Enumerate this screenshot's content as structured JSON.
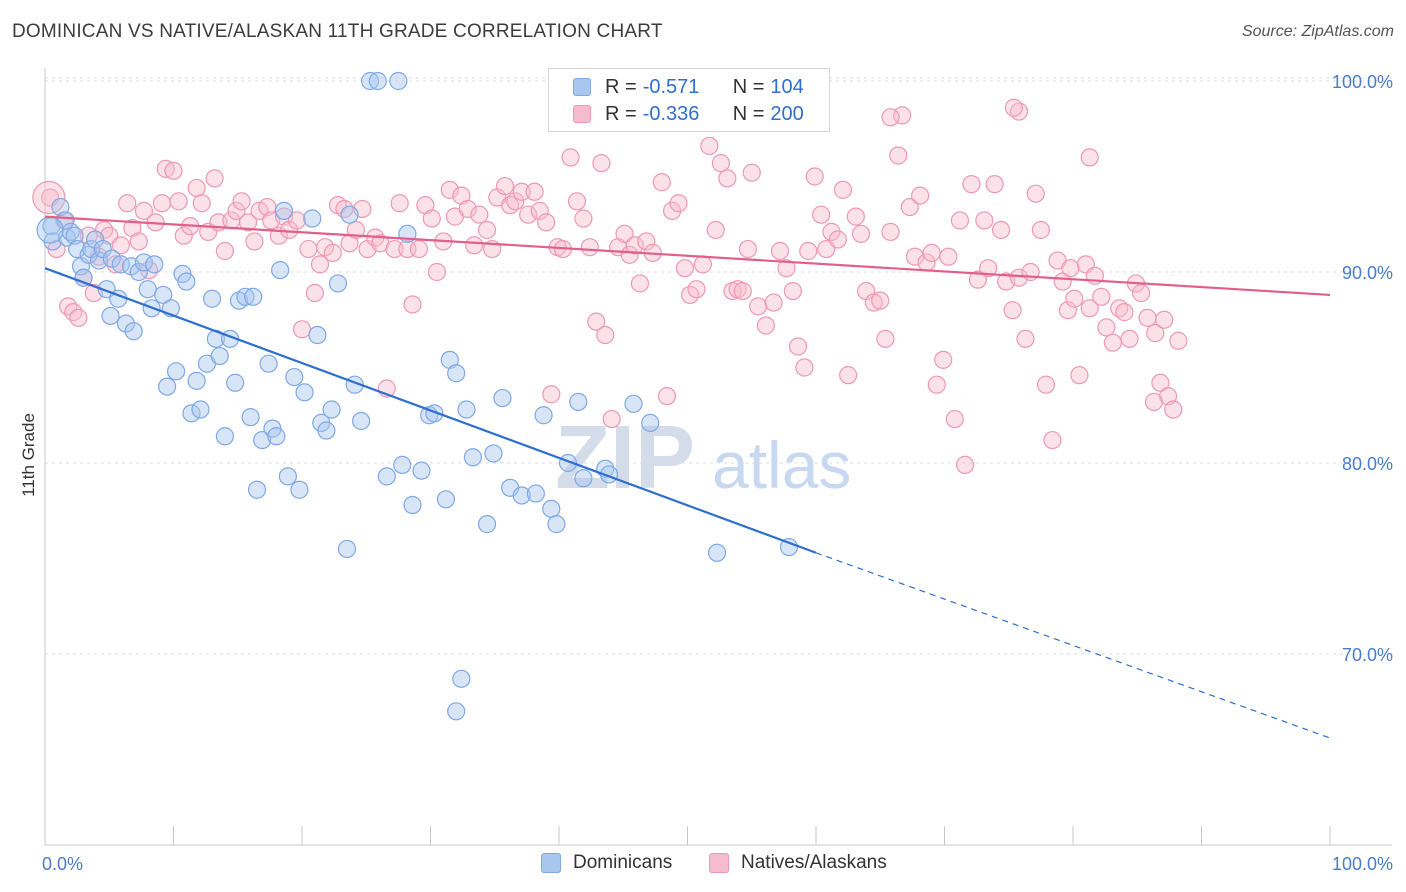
{
  "title": "DOMINICAN VS NATIVE/ALASKAN 11TH GRADE CORRELATION CHART",
  "source": "Source: ZipAtlas.com",
  "watermark": {
    "zip": "ZIP",
    "atlas": "atlas"
  },
  "legend": {
    "rows": [
      {
        "r_label": "R =",
        "r_value": "-0.571",
        "n_label": "N =",
        "n_value": "104"
      },
      {
        "r_label": "R =",
        "r_value": "-0.336",
        "n_label": "N =",
        "n_value": "200"
      }
    ]
  },
  "bottom_legend": [
    "Dominicans",
    "Natives/Alaskans"
  ],
  "colors": {
    "blue_fill": "#a9c6ee",
    "blue_stroke": "#7ea9e6",
    "blue_line": "#2e6fcf",
    "pink_fill": "#f6bccd",
    "pink_stroke": "#ee98b4",
    "pink_line": "#e0608a",
    "tick_label": "#4a7ccc",
    "grid": "#dddddd"
  },
  "chart_data": {
    "type": "scatter",
    "title": "DOMINICAN VS NATIVE/ALASKAN 11TH GRADE CORRELATION CHART",
    "xlabel": "",
    "ylabel": "11th Grade",
    "xlim": [
      0,
      100
    ],
    "ylim": [
      60,
      102
    ],
    "x_tick_labels": [
      "0.0%",
      "100.0%"
    ],
    "y_ticks": [
      70,
      80,
      90,
      100
    ],
    "y_tick_labels": [
      "70.0%",
      "80.0%",
      "90.0%",
      "100.0%"
    ],
    "series": [
      {
        "name": "Dominicans",
        "r": -0.571,
        "n": 104,
        "trend": {
          "x0": 0,
          "y0": 90.2,
          "x1": 60,
          "y1": 75.3,
          "dashed_to_x": 100,
          "dashed_to_y": 65.6
        },
        "points": [
          [
            0.5,
            92.4
          ],
          [
            0.6,
            91.6
          ],
          [
            1.2,
            93.4
          ],
          [
            1.6,
            92.7
          ],
          [
            1.7,
            91.8
          ],
          [
            2.0,
            92.1
          ],
          [
            2.3,
            91.9
          ],
          [
            2.5,
            91.2
          ],
          [
            2.8,
            90.3
          ],
          [
            3.0,
            89.7
          ],
          [
            3.4,
            90.9
          ],
          [
            3.6,
            91.2
          ],
          [
            3.9,
            91.7
          ],
          [
            4.2,
            90.6
          ],
          [
            4.5,
            91.2
          ],
          [
            4.8,
            89.1
          ],
          [
            5.1,
            87.7
          ],
          [
            5.2,
            90.7
          ],
          [
            5.7,
            88.6
          ],
          [
            5.9,
            90.4
          ],
          [
            6.3,
            87.3
          ],
          [
            6.7,
            90.3
          ],
          [
            6.9,
            86.9
          ],
          [
            7.3,
            90.0
          ],
          [
            7.7,
            90.5
          ],
          [
            8.0,
            89.1
          ],
          [
            8.3,
            88.1
          ],
          [
            8.5,
            90.4
          ],
          [
            9.2,
            88.8
          ],
          [
            9.5,
            84.0
          ],
          [
            9.8,
            88.1
          ],
          [
            10.2,
            84.8
          ],
          [
            10.7,
            89.9
          ],
          [
            11.0,
            89.5
          ],
          [
            11.4,
            82.6
          ],
          [
            11.8,
            84.3
          ],
          [
            12.1,
            82.8
          ],
          [
            12.6,
            85.2
          ],
          [
            13.0,
            88.6
          ],
          [
            13.3,
            86.5
          ],
          [
            13.6,
            85.6
          ],
          [
            14.0,
            81.4
          ],
          [
            14.4,
            86.5
          ],
          [
            14.8,
            84.2
          ],
          [
            15.1,
            88.5
          ],
          [
            15.6,
            88.7
          ],
          [
            16.0,
            82.4
          ],
          [
            16.2,
            88.7
          ],
          [
            16.5,
            78.6
          ],
          [
            16.9,
            81.2
          ],
          [
            17.4,
            85.2
          ],
          [
            17.7,
            81.8
          ],
          [
            18.0,
            81.4
          ],
          [
            18.3,
            90.1
          ],
          [
            18.6,
            93.2
          ],
          [
            18.9,
            79.3
          ],
          [
            19.4,
            84.5
          ],
          [
            19.8,
            78.6
          ],
          [
            20.2,
            83.7
          ],
          [
            20.8,
            92.8
          ],
          [
            21.2,
            86.7
          ],
          [
            21.5,
            82.1
          ],
          [
            21.9,
            81.7
          ],
          [
            22.3,
            82.8
          ],
          [
            22.8,
            89.4
          ],
          [
            23.5,
            75.5
          ],
          [
            23.7,
            93.0
          ],
          [
            24.1,
            84.1
          ],
          [
            24.6,
            82.2
          ],
          [
            25.3,
            100.0
          ],
          [
            25.9,
            100.0
          ],
          [
            26.6,
            79.3
          ],
          [
            27.5,
            100.0
          ],
          [
            27.8,
            79.9
          ],
          [
            28.2,
            92.0
          ],
          [
            28.6,
            77.8
          ],
          [
            29.3,
            79.6
          ],
          [
            29.9,
            82.5
          ],
          [
            30.3,
            82.6
          ],
          [
            31.2,
            78.1
          ],
          [
            31.5,
            85.4
          ],
          [
            32.0,
            84.7
          ],
          [
            32.4,
            68.7
          ],
          [
            32.8,
            82.8
          ],
          [
            33.3,
            80.3
          ],
          [
            34.4,
            76.8
          ],
          [
            34.9,
            80.5
          ],
          [
            35.6,
            83.4
          ],
          [
            36.2,
            78.7
          ],
          [
            37.1,
            78.3
          ],
          [
            38.2,
            78.4
          ],
          [
            38.8,
            82.5
          ],
          [
            39.4,
            77.6
          ],
          [
            39.8,
            76.8
          ],
          [
            40.7,
            80.0
          ],
          [
            41.5,
            83.2
          ],
          [
            41.9,
            79.2
          ],
          [
            43.6,
            79.7
          ],
          [
            45.8,
            83.1
          ],
          [
            47.1,
            82.1
          ],
          [
            52.3,
            75.3
          ],
          [
            57.9,
            75.6
          ],
          [
            43.9,
            79.4
          ],
          [
            32.0,
            67.0
          ]
        ]
      },
      {
        "name": "Natives/Alaskans",
        "r": -0.336,
        "n": 200,
        "trend": {
          "x0": 0,
          "y0": 92.9,
          "x1": 100,
          "y1": 88.8
        },
        "points": [
          [
            0.4,
            93.9
          ],
          [
            0.9,
            91.2
          ],
          [
            1.5,
            92.7
          ],
          [
            1.8,
            88.2
          ],
          [
            2.2,
            87.9
          ],
          [
            2.6,
            87.6
          ],
          [
            3.0,
            89.7
          ],
          [
            3.4,
            91.9
          ],
          [
            3.8,
            88.9
          ],
          [
            4.2,
            90.8
          ],
          [
            4.6,
            92.2
          ],
          [
            5.0,
            91.9
          ],
          [
            5.5,
            90.4
          ],
          [
            5.9,
            91.4
          ],
          [
            6.4,
            93.6
          ],
          [
            6.8,
            92.3
          ],
          [
            7.3,
            91.6
          ],
          [
            7.7,
            93.2
          ],
          [
            8.1,
            90.1
          ],
          [
            8.6,
            92.6
          ],
          [
            9.1,
            93.6
          ],
          [
            9.4,
            95.4
          ],
          [
            10.0,
            95.3
          ],
          [
            10.4,
            93.7
          ],
          [
            10.8,
            91.9
          ],
          [
            11.3,
            92.4
          ],
          [
            11.8,
            94.4
          ],
          [
            12.2,
            93.6
          ],
          [
            12.7,
            92.1
          ],
          [
            13.2,
            94.9
          ],
          [
            13.5,
            92.6
          ],
          [
            14.0,
            91.1
          ],
          [
            14.5,
            92.7
          ],
          [
            14.9,
            93.2
          ],
          [
            15.3,
            93.7
          ],
          [
            15.8,
            92.6
          ],
          [
            16.3,
            91.6
          ],
          [
            16.7,
            93.2
          ],
          [
            17.3,
            93.4
          ],
          [
            17.6,
            92.7
          ],
          [
            18.2,
            91.9
          ],
          [
            18.6,
            92.9
          ],
          [
            19.0,
            92.2
          ],
          [
            19.6,
            92.7
          ],
          [
            20.0,
            87.0
          ],
          [
            20.5,
            91.2
          ],
          [
            21.0,
            88.9
          ],
          [
            21.4,
            90.4
          ],
          [
            21.8,
            91.3
          ],
          [
            22.4,
            91.0
          ],
          [
            22.8,
            93.5
          ],
          [
            23.3,
            93.3
          ],
          [
            23.7,
            91.5
          ],
          [
            24.2,
            92.2
          ],
          [
            24.7,
            93.3
          ],
          [
            25.1,
            91.2
          ],
          [
            25.7,
            91.8
          ],
          [
            26.1,
            91.5
          ],
          [
            26.6,
            83.9
          ],
          [
            27.2,
            91.2
          ],
          [
            27.6,
            93.6
          ],
          [
            28.2,
            91.2
          ],
          [
            28.6,
            88.3
          ],
          [
            29.1,
            91.2
          ],
          [
            29.6,
            93.5
          ],
          [
            30.1,
            92.8
          ],
          [
            30.5,
            90.0
          ],
          [
            31.0,
            91.6
          ],
          [
            31.5,
            94.3
          ],
          [
            31.9,
            92.9
          ],
          [
            32.4,
            94.0
          ],
          [
            32.9,
            93.3
          ],
          [
            33.4,
            91.4
          ],
          [
            33.8,
            93.0
          ],
          [
            34.4,
            92.2
          ],
          [
            34.8,
            91.2
          ],
          [
            35.2,
            93.9
          ],
          [
            35.8,
            94.5
          ],
          [
            36.2,
            93.5
          ],
          [
            36.6,
            93.7
          ],
          [
            37.1,
            94.2
          ],
          [
            37.6,
            93.0
          ],
          [
            38.1,
            94.2
          ],
          [
            38.5,
            93.2
          ],
          [
            39.0,
            92.6
          ],
          [
            39.4,
            83.6
          ],
          [
            39.9,
            91.3
          ],
          [
            40.3,
            91.2
          ],
          [
            40.9,
            96.0
          ],
          [
            41.4,
            93.7
          ],
          [
            41.9,
            92.8
          ],
          [
            42.4,
            91.3
          ],
          [
            42.9,
            87.4
          ],
          [
            43.3,
            95.7
          ],
          [
            43.6,
            86.7
          ],
          [
            44.1,
            82.3
          ],
          [
            44.6,
            91.3
          ],
          [
            45.1,
            92.0
          ],
          [
            45.5,
            90.9
          ],
          [
            45.9,
            91.4
          ],
          [
            46.3,
            89.4
          ],
          [
            46.8,
            91.6
          ],
          [
            47.3,
            91.0
          ],
          [
            48.0,
            94.7
          ],
          [
            48.4,
            83.5
          ],
          [
            48.8,
            93.2
          ],
          [
            49.3,
            93.6
          ],
          [
            49.8,
            90.2
          ],
          [
            50.2,
            88.8
          ],
          [
            50.7,
            89.1
          ],
          [
            51.2,
            90.4
          ],
          [
            51.7,
            96.6
          ],
          [
            52.2,
            92.2
          ],
          [
            52.6,
            95.7
          ],
          [
            53.1,
            94.9
          ],
          [
            53.5,
            89.0
          ],
          [
            53.9,
            89.1
          ],
          [
            54.3,
            89.0
          ],
          [
            54.7,
            91.2
          ],
          [
            55.0,
            95.2
          ],
          [
            55.5,
            88.2
          ],
          [
            56.1,
            87.2
          ],
          [
            56.7,
            88.4
          ],
          [
            57.2,
            91.1
          ],
          [
            57.7,
            90.2
          ],
          [
            58.2,
            89.0
          ],
          [
            58.6,
            86.1
          ],
          [
            59.1,
            85.0
          ],
          [
            59.4,
            91.1
          ],
          [
            59.9,
            95.0
          ],
          [
            60.4,
            93.0
          ],
          [
            60.8,
            91.2
          ],
          [
            61.2,
            92.1
          ],
          [
            61.7,
            91.7
          ],
          [
            62.1,
            94.3
          ],
          [
            62.5,
            84.6
          ],
          [
            63.1,
            92.9
          ],
          [
            63.5,
            92.0
          ],
          [
            63.9,
            89.0
          ],
          [
            64.5,
            88.4
          ],
          [
            65.0,
            88.5
          ],
          [
            65.4,
            86.5
          ],
          [
            65.8,
            92.1
          ],
          [
            66.4,
            96.1
          ],
          [
            66.7,
            98.2
          ],
          [
            67.3,
            93.4
          ],
          [
            67.7,
            90.8
          ],
          [
            68.1,
            94.0
          ],
          [
            68.6,
            90.5
          ],
          [
            69.0,
            91.0
          ],
          [
            69.4,
            84.1
          ],
          [
            69.9,
            85.4
          ],
          [
            70.3,
            90.8
          ],
          [
            70.8,
            82.3
          ],
          [
            71.2,
            92.7
          ],
          [
            71.6,
            79.9
          ],
          [
            72.1,
            94.6
          ],
          [
            72.6,
            89.6
          ],
          [
            73.1,
            92.7
          ],
          [
            73.4,
            90.2
          ],
          [
            73.9,
            94.6
          ],
          [
            74.4,
            92.2
          ],
          [
            74.8,
            89.5
          ],
          [
            75.3,
            88.0
          ],
          [
            75.8,
            89.7
          ],
          [
            76.3,
            86.5
          ],
          [
            76.7,
            90.0
          ],
          [
            77.1,
            94.1
          ],
          [
            77.5,
            92.2
          ],
          [
            77.9,
            84.1
          ],
          [
            78.4,
            81.2
          ],
          [
            78.8,
            90.6
          ],
          [
            79.2,
            89.5
          ],
          [
            79.6,
            88.0
          ],
          [
            80.1,
            88.6
          ],
          [
            80.5,
            84.6
          ],
          [
            81.0,
            90.4
          ],
          [
            81.3,
            88.1
          ],
          [
            81.7,
            89.8
          ],
          [
            82.2,
            88.7
          ],
          [
            82.6,
            87.1
          ],
          [
            83.1,
            86.3
          ],
          [
            83.6,
            88.1
          ],
          [
            84.0,
            87.9
          ],
          [
            84.4,
            86.5
          ],
          [
            84.9,
            89.4
          ],
          [
            85.3,
            88.9
          ],
          [
            85.8,
            87.6
          ],
          [
            86.4,
            86.8
          ],
          [
            86.8,
            84.2
          ],
          [
            87.1,
            87.5
          ],
          [
            87.4,
            83.5
          ],
          [
            87.8,
            82.8
          ],
          [
            88.2,
            86.4
          ],
          [
            81.3,
            96.0
          ],
          [
            65.8,
            98.1
          ],
          [
            75.8,
            98.4
          ],
          [
            75.4,
            98.6
          ],
          [
            79.8,
            90.2
          ],
          [
            86.3,
            83.2
          ]
        ]
      }
    ]
  }
}
